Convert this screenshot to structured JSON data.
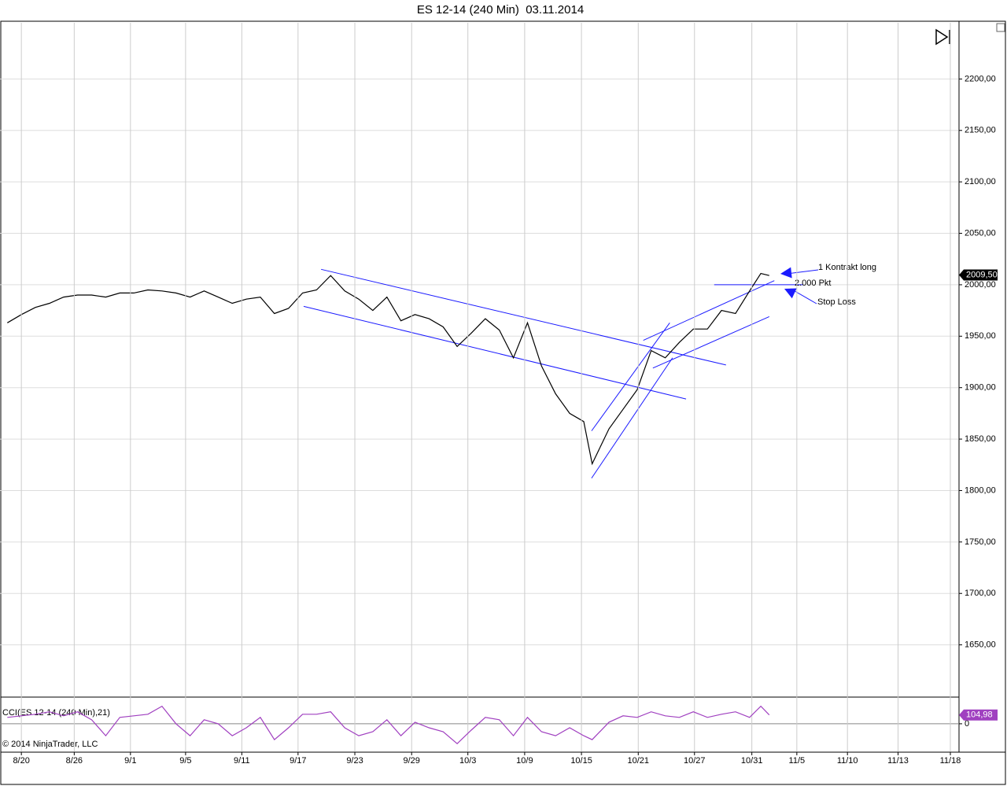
{
  "chart_data": [
    {
      "type": "line",
      "title": "ES 12-14 (240 Min)  03.11.2014",
      "x": [
        -0.25,
        0,
        0.25,
        0.5,
        0.75,
        1,
        1.25,
        1.5,
        1.75,
        2,
        2.25,
        2.5,
        2.75,
        3,
        3.25,
        3.5,
        3.75,
        4,
        4.25,
        4.5,
        4.75,
        5,
        5.25,
        5.5,
        5.75,
        6,
        6.25,
        6.5,
        6.75,
        7,
        7.25,
        7.5,
        7.75,
        8,
        8.25,
        8.5,
        8.75,
        9,
        9.25,
        9.5,
        9.75,
        10,
        10.15,
        10.45,
        10.7,
        10.95,
        11.2,
        11.45,
        11.7,
        11.95,
        12.2,
        12.45,
        12.7,
        12.95,
        13.15,
        13.3
      ],
      "xlim": [
        -0.38,
        16.66
      ],
      "ylim": [
        1600,
        2250
      ],
      "yticks": [
        {
          "value": 1650,
          "label": "1650,00"
        },
        {
          "value": 1700,
          "label": "1700,00"
        },
        {
          "value": 1750,
          "label": "1750,00"
        },
        {
          "value": 1800,
          "label": "1800,00"
        },
        {
          "value": 1850,
          "label": "1850,00"
        },
        {
          "value": 1900,
          "label": "1900,00"
        },
        {
          "value": 1950,
          "label": "1950,00"
        },
        {
          "value": 2000,
          "label": "2000,00"
        },
        {
          "value": 2050,
          "label": "2050,00"
        },
        {
          "value": 2100,
          "label": "2100,00"
        },
        {
          "value": 2150,
          "label": "2150,00"
        },
        {
          "value": 2200,
          "label": "2200,00"
        }
      ],
      "grid": true,
      "series": [
        {
          "color": "#000000",
          "values": [
            1963,
            1971,
            1978,
            1982,
            1988,
            1990,
            1990,
            1988,
            1992,
            1992,
            1995,
            1994,
            1992,
            1988,
            1994,
            1988,
            1982,
            1986,
            1988,
            1972,
            1977,
            1992,
            1995,
            2009,
            1994,
            1986,
            1975,
            1988,
            1965,
            1971,
            1967,
            1959,
            1940,
            1953,
            1967,
            1956,
            1929,
            1963,
            1921,
            1894,
            1875,
            1867,
            1826,
            1860,
            1879,
            1898,
            1936,
            1929,
            1944,
            1957,
            1957,
            1975,
            1972,
            1994,
            2011,
            2009
          ]
        }
      ],
      "last_price": {
        "value": 2009.5,
        "label": "2009,50"
      },
      "trendlines": {
        "color": "#1a1aff",
        "lines": [
          [
            5.33,
            2015,
            12.53,
            1922
          ],
          [
            5.02,
            1979,
            11.82,
            1889
          ],
          [
            10.14,
            1858,
            11.53,
            1963
          ],
          [
            10.14,
            1812,
            11.58,
            1929
          ],
          [
            11.06,
            1946,
            13.39,
            2004
          ],
          [
            11.23,
            1919,
            13.3,
            1969
          ],
          [
            12.32,
            2000,
            13.9,
            2000
          ]
        ]
      },
      "annotations": [
        "1 Kontrakt long",
        "2.000 Pkt",
        "Stop Loss"
      ]
    },
    {
      "type": "line",
      "x": [
        -0.25,
        0,
        0.25,
        0.5,
        0.75,
        1,
        1.25,
        1.5,
        1.75,
        2,
        2.25,
        2.5,
        2.75,
        3,
        3.25,
        3.5,
        3.75,
        4,
        4.25,
        4.5,
        4.75,
        5,
        5.25,
        5.5,
        5.75,
        6,
        6.25,
        6.5,
        6.75,
        7,
        7.25,
        7.5,
        7.75,
        8,
        8.25,
        8.5,
        8.75,
        9,
        9.25,
        9.5,
        9.75,
        10,
        10.15,
        10.45,
        10.7,
        10.95,
        11.2,
        11.45,
        11.7,
        11.95,
        12.2,
        12.45,
        12.7,
        12.95,
        13.15,
        13.3
      ],
      "xlim": [
        -0.38,
        16.66
      ],
      "ylim": [
        -330,
        300
      ],
      "yticks": [
        0
      ],
      "series": [
        {
          "name": "CCI(ES 12-14 (240 Min),21)",
          "color": "#a040c0",
          "values": [
            76,
            95,
            114,
            143,
            95,
            143,
            48,
            -143,
            76,
            95,
            114,
            210,
            0,
            -143,
            48,
            0,
            -143,
            -48,
            76,
            -190,
            -48,
            114,
            114,
            143,
            -48,
            -143,
            -95,
            48,
            -143,
            19,
            -48,
            -95,
            -238,
            -76,
            76,
            48,
            -143,
            76,
            -95,
            -143,
            -48,
            -143,
            -190,
            19,
            95,
            76,
            143,
            95,
            76,
            143,
            76,
            114,
            143,
            76,
            210,
            105
          ]
        }
      ],
      "last_value": {
        "value": 104.98,
        "label": "104,98"
      },
      "xticks": [
        {
          "value": 0,
          "label": "8/20"
        },
        {
          "value": 0.94,
          "label": "8/26"
        },
        {
          "value": 1.94,
          "label": "9/1"
        },
        {
          "value": 2.92,
          "label": "9/5"
        },
        {
          "value": 3.92,
          "label": "9/11"
        },
        {
          "value": 4.92,
          "label": "9/17"
        },
        {
          "value": 5.93,
          "label": "9/23"
        },
        {
          "value": 6.94,
          "label": "9/29"
        },
        {
          "value": 7.94,
          "label": "10/3"
        },
        {
          "value": 8.95,
          "label": "10/9"
        },
        {
          "value": 9.96,
          "label": "10/15"
        },
        {
          "value": 10.97,
          "label": "10/21"
        },
        {
          "value": 11.97,
          "label": "10/27"
        },
        {
          "value": 12.99,
          "label": "10/31"
        },
        {
          "value": 13.79,
          "label": "11/5"
        },
        {
          "value": 14.69,
          "label": "11/10"
        },
        {
          "value": 15.59,
          "label": "11/13"
        },
        {
          "value": 16.52,
          "label": "11/18"
        }
      ],
      "copyright": "© 2014 NinjaTrader, LLC"
    }
  ]
}
